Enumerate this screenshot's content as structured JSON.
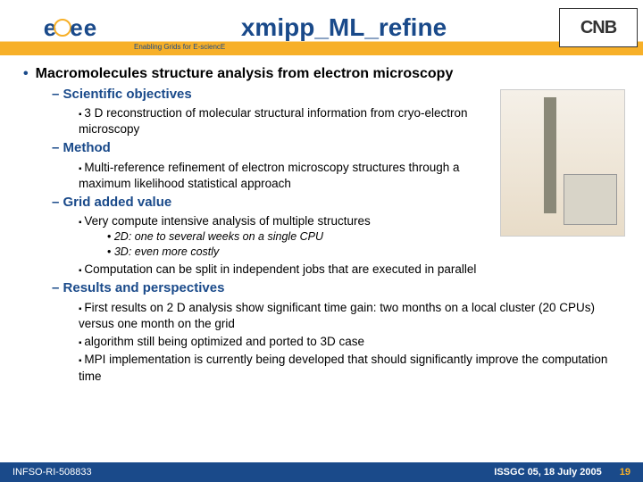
{
  "header": {
    "logo_left_text": "eGee",
    "tagline": "Enabling Grids for E-sciencE",
    "title": "xmipp_ML_refine",
    "logo_right_text": "CNB"
  },
  "content": {
    "main_bullet": "Macromolecules structure analysis from electron microscopy",
    "sections": {
      "s1": {
        "title": "Scientific objectives",
        "items": [
          "3 D reconstruction of molecular structural information from cryo-electron microscopy"
        ]
      },
      "s2": {
        "title": "Method",
        "items": [
          "Multi-reference refinement of electron microscopy structures through a maximum likelihood statistical approach"
        ]
      },
      "s3": {
        "title": "Grid added value",
        "items": [
          "Very compute intensive analysis of multiple structures"
        ],
        "sub": [
          "2D: one to several weeks on a single CPU",
          "3D: even more costly"
        ],
        "items2": [
          "Computation can be split in independent jobs that are executed in parallel"
        ]
      },
      "s4": {
        "title": "Results and perspectives",
        "items": [
          "First results on 2 D analysis show significant time gain: two months on a local cluster (20 CPUs) versus one month on the grid",
          "algorithm still being optimized and ported to 3D case",
          "MPI implementation is currently being developed that should significantly improve the computation time"
        ]
      }
    }
  },
  "footer": {
    "left": "INFSO-RI-508833",
    "right": "ISSGC 05, 18 July 2005",
    "page": "19"
  },
  "colors": {
    "brand_blue": "#1a4a8a",
    "brand_orange": "#f7b029"
  }
}
